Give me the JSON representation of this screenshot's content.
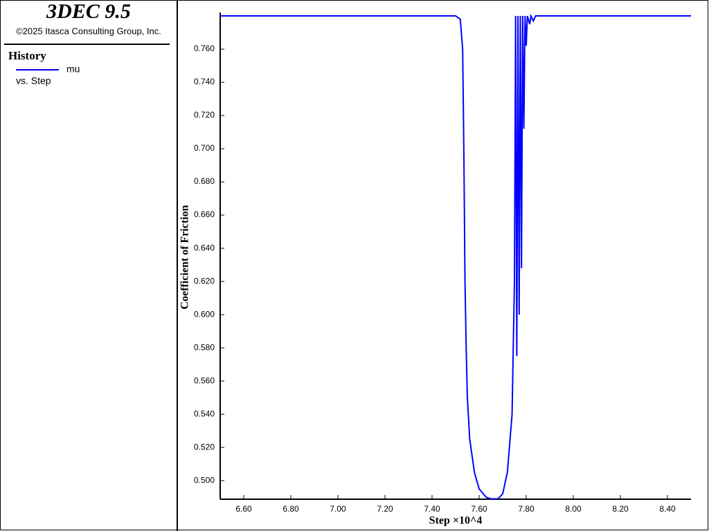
{
  "header": {
    "title": "3DEC 9.5",
    "copyright": "©2025 Itasca Consulting Group, Inc."
  },
  "legend": {
    "title": "History",
    "x_label": "vs. Step"
  },
  "chart_data": {
    "type": "line",
    "x_label": "Step ×10^4",
    "y_label": "Coefficient of Friction",
    "x": [
      6.5,
      7.5,
      7.52,
      7.53,
      7.535,
      7.54,
      7.545,
      7.55,
      7.56,
      7.58,
      7.6,
      7.63,
      7.65,
      7.68,
      7.7,
      7.72,
      7.74,
      7.75,
      7.755,
      7.76,
      7.765,
      7.77,
      7.775,
      7.78,
      7.785,
      7.79,
      7.795,
      7.8,
      7.805,
      7.815,
      7.82,
      7.83,
      7.84,
      8.5
    ],
    "series": [
      {
        "name": "mu",
        "color": "#0000ff",
        "values": [
          0.78,
          0.78,
          0.778,
          0.76,
          0.7,
          0.62,
          0.58,
          0.55,
          0.525,
          0.505,
          0.495,
          0.49,
          0.489,
          0.489,
          0.492,
          0.505,
          0.54,
          0.62,
          0.78,
          0.575,
          0.78,
          0.6,
          0.78,
          0.628,
          0.78,
          0.712,
          0.78,
          0.762,
          0.78,
          0.775,
          0.78,
          0.777,
          0.78,
          0.78
        ]
      }
    ],
    "xlim": [
      6.5,
      8.5
    ],
    "ylim": [
      0.4888,
      0.7821
    ],
    "xticks": [
      {
        "value": 6.6,
        "label": "6.60"
      },
      {
        "value": 6.8,
        "label": "6.80"
      },
      {
        "value": 7.0,
        "label": "7.00"
      },
      {
        "value": 7.2,
        "label": "7.20"
      },
      {
        "value": 7.4,
        "label": "7.40"
      },
      {
        "value": 7.6,
        "label": "7.60"
      },
      {
        "value": 7.8,
        "label": "7.80"
      },
      {
        "value": 8.0,
        "label": "8.00"
      },
      {
        "value": 8.2,
        "label": "8.20"
      },
      {
        "value": 8.4,
        "label": "8.40"
      }
    ],
    "yticks": [
      {
        "value": 0.5,
        "label": "0.500"
      },
      {
        "value": 0.52,
        "label": "0.520"
      },
      {
        "value": 0.54,
        "label": "0.540"
      },
      {
        "value": 0.56,
        "label": "0.560"
      },
      {
        "value": 0.58,
        "label": "0.580"
      },
      {
        "value": 0.6,
        "label": "0.600"
      },
      {
        "value": 0.62,
        "label": "0.620"
      },
      {
        "value": 0.64,
        "label": "0.640"
      },
      {
        "value": 0.66,
        "label": "0.660"
      },
      {
        "value": 0.68,
        "label": "0.680"
      },
      {
        "value": 0.7,
        "label": "0.700"
      },
      {
        "value": 0.72,
        "label": "0.720"
      },
      {
        "value": 0.74,
        "label": "0.740"
      },
      {
        "value": 0.76,
        "label": "0.760"
      }
    ]
  }
}
